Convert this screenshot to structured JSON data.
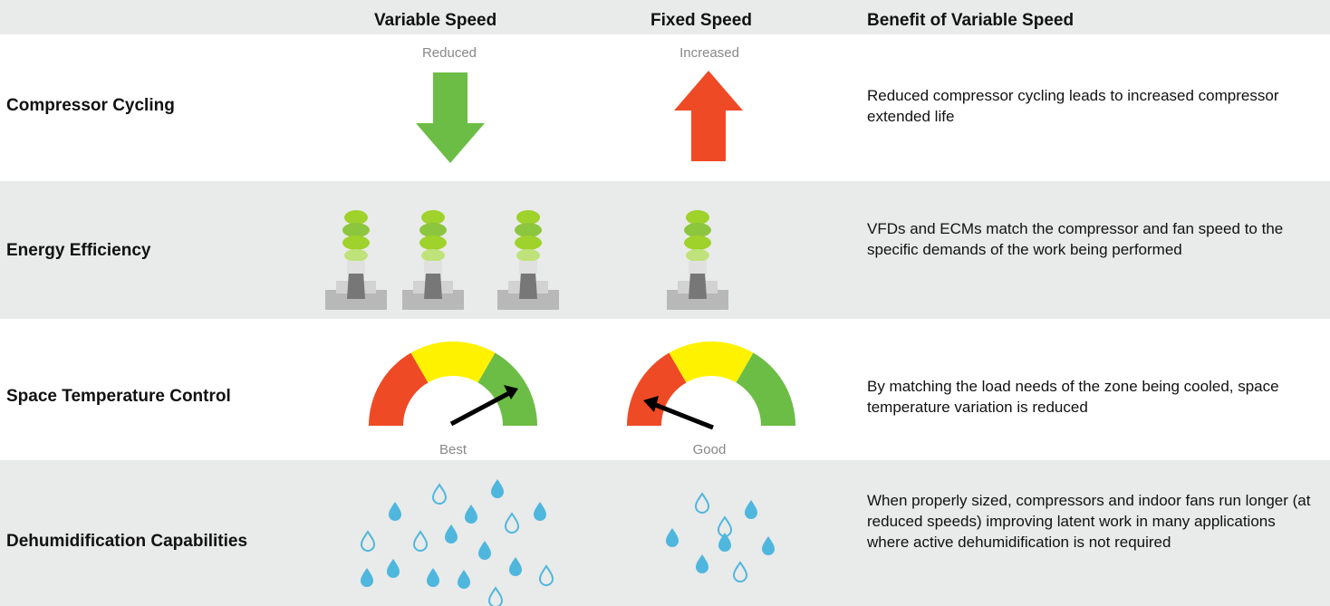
{
  "table": {
    "columns": [
      "Variable Speed",
      "Fixed Speed",
      "Benefit of Variable Speed"
    ],
    "rows": [
      {
        "label": "Compressor Cycling",
        "variable_caption": "Reduced",
        "fixed_caption": "Increased",
        "benefit": "Reduced compressor cycling leads to increased compressor extended life"
      },
      {
        "label": "Energy Efficiency",
        "benefit": "VFDs and ECMs match the compressor and fan speed to the specific demands of the work being performed"
      },
      {
        "label": "Space Temperature Control",
        "variable_caption": "Best",
        "fixed_caption": "Good",
        "benefit": "By matching the load needs of the zone being cooled, space temperature variation is reduced"
      },
      {
        "label": "Dehumidification Capabilities",
        "benefit": "When properly sized, compressors and indoor fans run longer (at reduced speeds) improving latent work in many applications where active dehumidification is not required"
      }
    ]
  }
}
